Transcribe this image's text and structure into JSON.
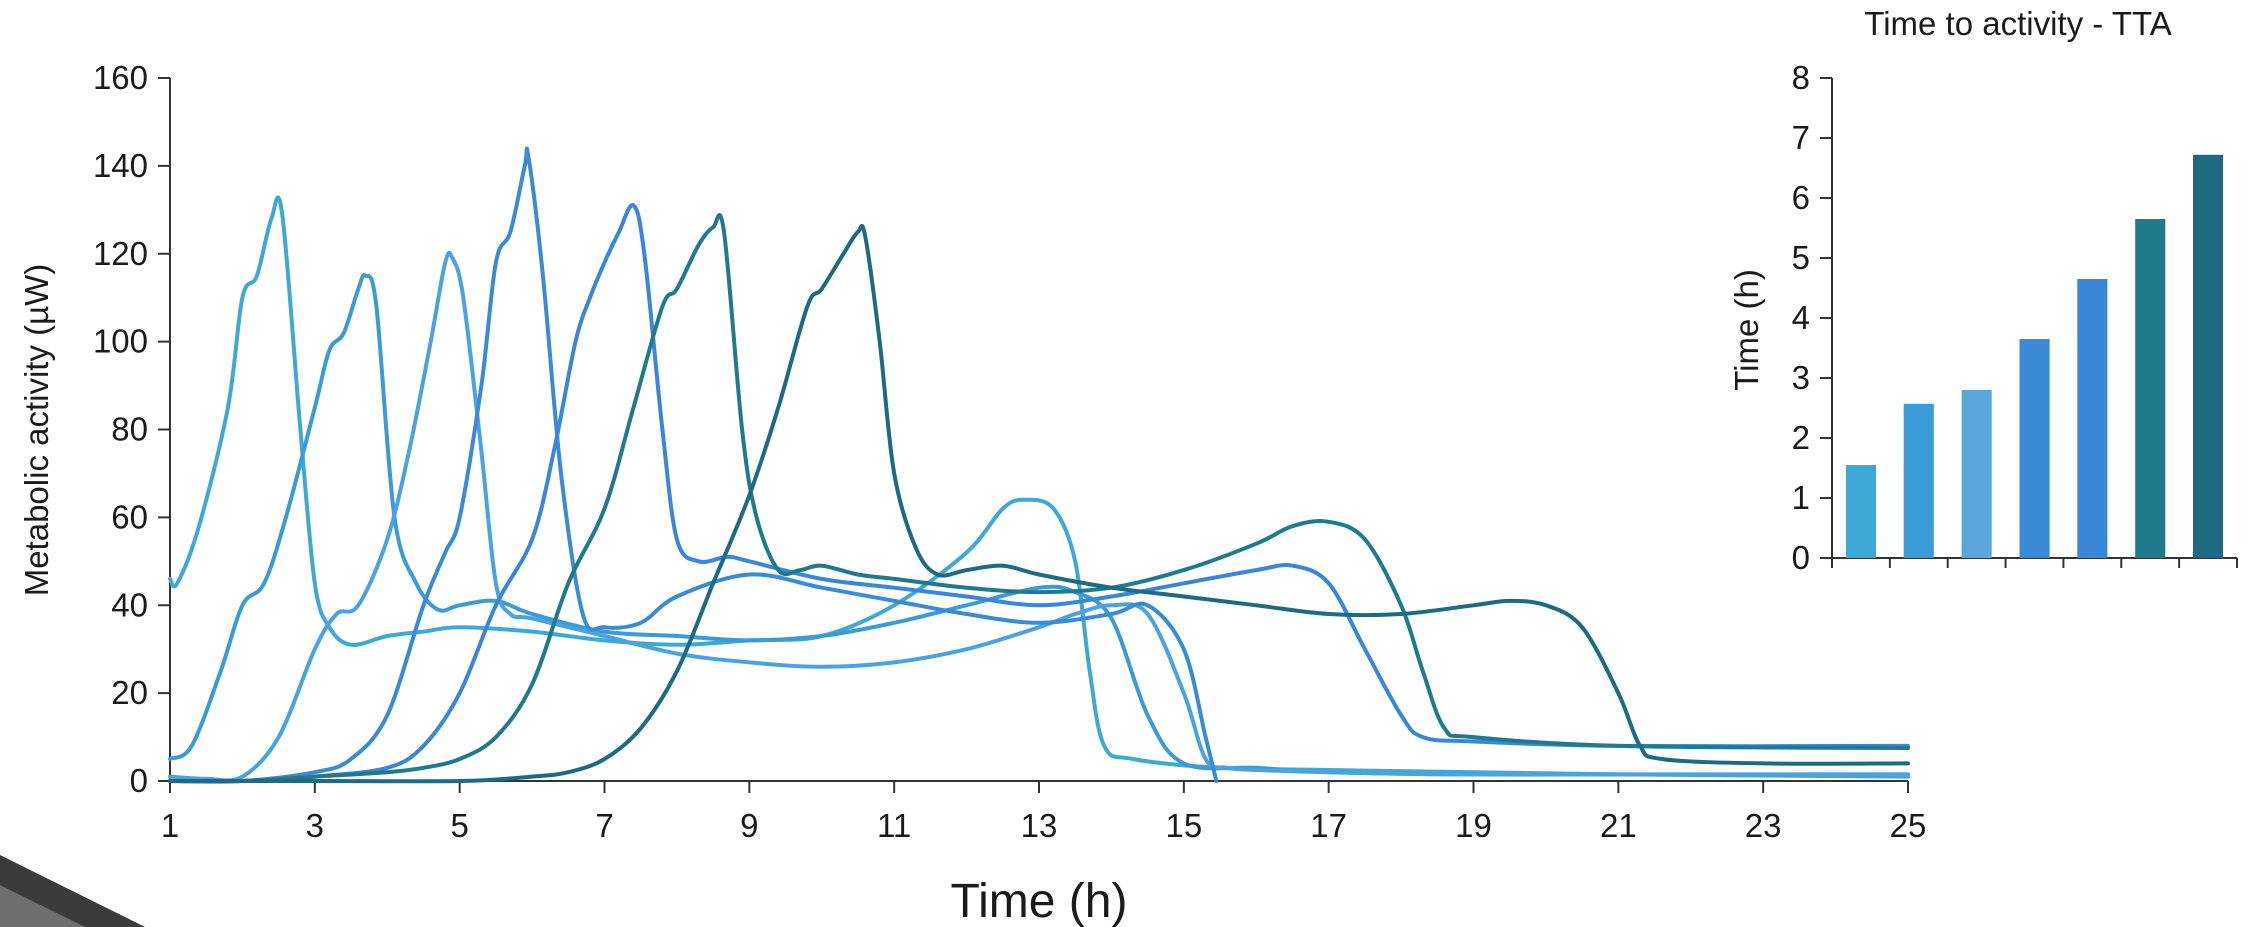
{
  "chart_data": [
    {
      "type": "line",
      "title": "",
      "xlabel": "Time (h)",
      "ylabel": "Metabolic activity (µW)",
      "xlim": [
        1,
        25
      ],
      "ylim": [
        0,
        160
      ],
      "x_ticks": [
        "1",
        "3",
        "5",
        "7",
        "9",
        "11",
        "13",
        "15",
        "17",
        "19",
        "21",
        "23",
        "25"
      ],
      "y_ticks": [
        "0",
        "20",
        "40",
        "60",
        "80",
        "100",
        "120",
        "140",
        "160"
      ],
      "grid": false,
      "series": [
        {
          "color": "#3fa9d6",
          "points": [
            [
              1,
              46
            ],
            [
              1.1,
              45
            ],
            [
              1.4,
              58
            ],
            [
              1.8,
              85
            ],
            [
              2.0,
              110
            ],
            [
              2.2,
              115
            ],
            [
              2.4,
              128
            ],
            [
              2.55,
              129
            ],
            [
              2.8,
              80
            ],
            [
              3.0,
              45
            ],
            [
              3.2,
              35
            ],
            [
              3.5,
              31
            ],
            [
              4.0,
              33
            ],
            [
              4.5,
              34
            ],
            [
              5.0,
              35
            ],
            [
              6.0,
              34
            ],
            [
              7.0,
              32
            ],
            [
              8.0,
              31
            ],
            [
              9.0,
              32
            ],
            [
              10.0,
              33
            ],
            [
              11.0,
              40
            ],
            [
              12.0,
              52
            ],
            [
              12.5,
              62
            ],
            [
              12.8,
              64
            ],
            [
              13.2,
              62
            ],
            [
              13.5,
              50
            ],
            [
              13.7,
              25
            ],
            [
              13.9,
              8
            ],
            [
              14.3,
              5
            ],
            [
              15.5,
              3
            ],
            [
              17,
              2.5
            ],
            [
              19,
              2
            ],
            [
              21,
              1.5
            ],
            [
              25,
              1
            ]
          ]
        },
        {
          "color": "#3a9bd6",
          "points": [
            [
              1,
              5
            ],
            [
              1.3,
              8
            ],
            [
              1.7,
              25
            ],
            [
              2.0,
              40
            ],
            [
              2.3,
              45
            ],
            [
              2.6,
              60
            ],
            [
              3.0,
              85
            ],
            [
              3.2,
              98
            ],
            [
              3.4,
              102
            ],
            [
              3.6,
              112
            ],
            [
              3.7,
              115
            ],
            [
              3.85,
              108
            ],
            [
              4.1,
              60
            ],
            [
              4.4,
              45
            ],
            [
              4.7,
              39
            ],
            [
              5.0,
              40
            ],
            [
              5.5,
              41
            ],
            [
              6.0,
              38
            ],
            [
              7.0,
              34
            ],
            [
              8.0,
              33
            ],
            [
              9.0,
              32
            ],
            [
              10.0,
              33
            ],
            [
              11.0,
              36
            ],
            [
              12.0,
              40
            ],
            [
              13.0,
              44
            ],
            [
              13.5,
              43
            ],
            [
              14.0,
              37
            ],
            [
              14.5,
              15
            ],
            [
              15.0,
              4
            ],
            [
              16,
              3
            ],
            [
              17,
              2
            ],
            [
              19,
              1.5
            ],
            [
              21,
              1.5
            ],
            [
              25,
              1.5
            ]
          ]
        },
        {
          "color": "#4aa3de",
          "points": [
            [
              1,
              1
            ],
            [
              1.5,
              0.5
            ],
            [
              2.0,
              1
            ],
            [
              2.5,
              10
            ],
            [
              3.0,
              30
            ],
            [
              3.3,
              38
            ],
            [
              3.6,
              40
            ],
            [
              4.0,
              55
            ],
            [
              4.3,
              75
            ],
            [
              4.6,
              100
            ],
            [
              4.8,
              118
            ],
            [
              4.9,
              119
            ],
            [
              5.05,
              110
            ],
            [
              5.3,
              75
            ],
            [
              5.5,
              45
            ],
            [
              5.7,
              38
            ],
            [
              6.0,
              37
            ],
            [
              7.0,
              33
            ],
            [
              8.0,
              29
            ],
            [
              9.0,
              27
            ],
            [
              10.0,
              26
            ],
            [
              11.0,
              27
            ],
            [
              12.0,
              30
            ],
            [
              13.0,
              35
            ],
            [
              13.5,
              38
            ],
            [
              14.0,
              40
            ],
            [
              14.5,
              38
            ],
            [
              15.0,
              20
            ],
            [
              15.3,
              5
            ],
            [
              15.6,
              3
            ],
            [
              16,
              2.5
            ],
            [
              17,
              2
            ],
            [
              19,
              1.5
            ],
            [
              25,
              1.5
            ]
          ]
        },
        {
          "color": "#3a8bd6",
          "points": [
            [
              1,
              0
            ],
            [
              2.0,
              0
            ],
            [
              3.0,
              2
            ],
            [
              3.5,
              5
            ],
            [
              4.0,
              15
            ],
            [
              4.5,
              40
            ],
            [
              4.8,
              52
            ],
            [
              5.0,
              60
            ],
            [
              5.3,
              90
            ],
            [
              5.5,
              118
            ],
            [
              5.7,
              125
            ],
            [
              5.9,
              140
            ],
            [
              5.95,
              142
            ],
            [
              6.15,
              115
            ],
            [
              6.4,
              70
            ],
            [
              6.7,
              38
            ],
            [
              7.0,
              35
            ],
            [
              7.5,
              36
            ],
            [
              8.0,
              42
            ],
            [
              9.0,
              47
            ],
            [
              10.0,
              44
            ],
            [
              11.0,
              41
            ],
            [
              12.0,
              38
            ],
            [
              13.0,
              36
            ],
            [
              14.0,
              38
            ],
            [
              14.5,
              40
            ],
            [
              15.0,
              30
            ],
            [
              15.3,
              10
            ],
            [
              15.45,
              0
            ]
          ]
        },
        {
          "color": "#3a86d8",
          "points": [
            [
              1,
              0
            ],
            [
              2.0,
              0
            ],
            [
              3.0,
              1
            ],
            [
              4.0,
              3
            ],
            [
              4.5,
              8
            ],
            [
              5.0,
              20
            ],
            [
              5.5,
              40
            ],
            [
              6.0,
              55
            ],
            [
              6.3,
              75
            ],
            [
              6.6,
              100
            ],
            [
              6.8,
              110
            ],
            [
              7.0,
              118
            ],
            [
              7.2,
              125
            ],
            [
              7.4,
              131
            ],
            [
              7.55,
              120
            ],
            [
              7.8,
              80
            ],
            [
              8.0,
              55
            ],
            [
              8.3,
              50
            ],
            [
              8.7,
              51
            ],
            [
              9.0,
              50
            ],
            [
              10.0,
              46
            ],
            [
              11.0,
              44
            ],
            [
              12.0,
              42
            ],
            [
              13.0,
              40
            ],
            [
              14.0,
              42
            ],
            [
              15.0,
              45
            ],
            [
              16.0,
              48
            ],
            [
              16.5,
              49
            ],
            [
              17.0,
              45
            ],
            [
              17.5,
              30
            ],
            [
              18.0,
              15
            ],
            [
              18.3,
              10
            ],
            [
              19,
              9
            ],
            [
              21,
              8
            ],
            [
              25,
              8
            ]
          ]
        },
        {
          "color": "#1f7a8c",
          "points": [
            [
              1,
              0
            ],
            [
              2.0,
              0
            ],
            [
              3.0,
              1
            ],
            [
              4.0,
              2
            ],
            [
              4.5,
              3
            ],
            [
              5.0,
              5
            ],
            [
              5.5,
              10
            ],
            [
              6.0,
              22
            ],
            [
              6.5,
              45
            ],
            [
              7.0,
              62
            ],
            [
              7.4,
              85
            ],
            [
              7.8,
              108
            ],
            [
              8.0,
              112
            ],
            [
              8.3,
              122
            ],
            [
              8.5,
              126
            ],
            [
              8.65,
              125
            ],
            [
              8.9,
              80
            ],
            [
              9.1,
              60
            ],
            [
              9.4,
              48
            ],
            [
              9.7,
              48
            ],
            [
              10.0,
              49
            ],
            [
              10.5,
              47
            ],
            [
              11.0,
              46
            ],
            [
              12.0,
              44
            ],
            [
              13.0,
              43
            ],
            [
              14.0,
              44
            ],
            [
              15.0,
              48
            ],
            [
              16.0,
              54
            ],
            [
              16.5,
              58
            ],
            [
              17.0,
              59
            ],
            [
              17.5,
              55
            ],
            [
              18.0,
              40
            ],
            [
              18.3,
              25
            ],
            [
              18.6,
              12
            ],
            [
              19,
              10
            ],
            [
              21,
              8
            ],
            [
              25,
              7.5
            ]
          ]
        },
        {
          "color": "#1e6a80",
          "points": [
            [
              1,
              0
            ],
            [
              3.0,
              0
            ],
            [
              5.0,
              0
            ],
            [
              6.0,
              1
            ],
            [
              6.5,
              2
            ],
            [
              7.0,
              5
            ],
            [
              7.5,
              12
            ],
            [
              8.0,
              25
            ],
            [
              8.5,
              45
            ],
            [
              9.0,
              65
            ],
            [
              9.4,
              85
            ],
            [
              9.8,
              108
            ],
            [
              10.0,
              112
            ],
            [
              10.3,
              120
            ],
            [
              10.5,
              125
            ],
            [
              10.6,
              124
            ],
            [
              10.8,
              100
            ],
            [
              11.0,
              70
            ],
            [
              11.3,
              53
            ],
            [
              11.6,
              47
            ],
            [
              12.0,
              48
            ],
            [
              12.5,
              49
            ],
            [
              13.0,
              47
            ],
            [
              14.0,
              44
            ],
            [
              15.0,
              42
            ],
            [
              16.0,
              40
            ],
            [
              17.0,
              38
            ],
            [
              18.0,
              38
            ],
            [
              19.0,
              40
            ],
            [
              19.5,
              41
            ],
            [
              20.0,
              40
            ],
            [
              20.5,
              35
            ],
            [
              21.0,
              20
            ],
            [
              21.3,
              8
            ],
            [
              21.6,
              5
            ],
            [
              23,
              4
            ],
            [
              25,
              4
            ]
          ]
        }
      ]
    },
    {
      "type": "bar",
      "title": "Time to activity - TTA",
      "xlabel": "",
      "ylabel": "Time (h)",
      "ylim": [
        0,
        8
      ],
      "y_ticks": [
        "0",
        "1",
        "2",
        "3",
        "4",
        "5",
        "6",
        "7",
        "8"
      ],
      "categories": [
        "",
        "",
        "",
        "",
        "",
        "",
        ""
      ],
      "values": [
        1.55,
        2.57,
        2.8,
        3.65,
        4.65,
        5.65,
        6.72
      ],
      "colors": [
        "#3fa9d6",
        "#3a9bd6",
        "#5aa6dc",
        "#3a8bd6",
        "#3a86d8",
        "#1f7a8c",
        "#1e6a80"
      ],
      "grid": false
    }
  ]
}
